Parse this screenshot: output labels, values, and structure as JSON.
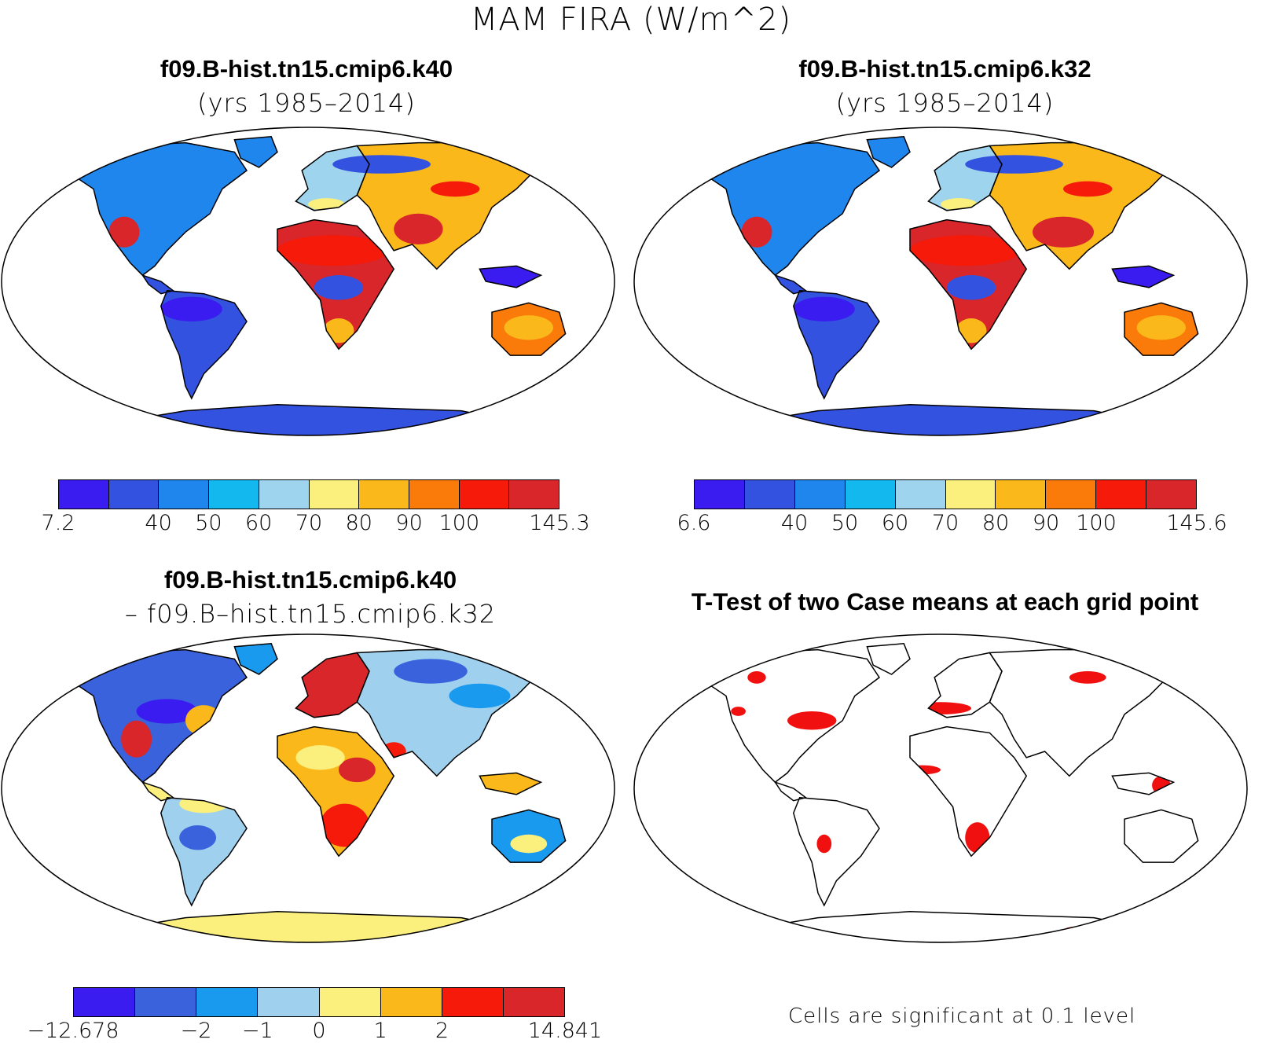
{
  "title": "MAM FIRA (W/m^2)",
  "panels": {
    "top_left": {
      "title": "f09.B-hist.tn15.cmip6.k40",
      "subtitle": "(yrs 1985–2014)"
    },
    "top_right": {
      "title": "f09.B-hist.tn15.cmip6.k32",
      "subtitle": "(yrs 1985–2014)"
    },
    "bottom_left": {
      "title": "f09.B-hist.tn15.cmip6.k40",
      "subtitle": "– f09.B–hist.tn15.cmip6.k32"
    },
    "bottom_right": {
      "title": "T-Test of two Case means at each grid point",
      "footnote": "Cells are significant at 0.1 level"
    }
  },
  "colorbars": {
    "top_left": {
      "colors": [
        "#3b1cf0",
        "#3352e0",
        "#1f86ee",
        "#12b8ee",
        "#9fd4ee",
        "#fbef7d",
        "#fbb81a",
        "#fa7a0a",
        "#f51a0a",
        "#d8262a"
      ],
      "labels": [
        "7.2",
        "40",
        "50",
        "60",
        "70",
        "80",
        "90",
        "100",
        "145.3"
      ]
    },
    "top_right": {
      "colors": [
        "#3b1cf0",
        "#3352e0",
        "#1f86ee",
        "#12b8ee",
        "#9fd4ee",
        "#fbef7d",
        "#fbb81a",
        "#fa7a0a",
        "#f51a0a",
        "#d8262a"
      ],
      "labels": [
        "6.6",
        "40",
        "50",
        "60",
        "70",
        "80",
        "90",
        "100",
        "145.6"
      ]
    },
    "bottom_left": {
      "colors": [
        "#3b1cf0",
        "#3a62dc",
        "#1a9aee",
        "#9fd0ee",
        "#fbef7d",
        "#fbb81a",
        "#f51a0a",
        "#d8262a"
      ],
      "labels": [
        "−12.678",
        "−2",
        "−1",
        "0",
        "1",
        "2",
        "14.841"
      ]
    }
  },
  "significance_color": "#f01010"
}
